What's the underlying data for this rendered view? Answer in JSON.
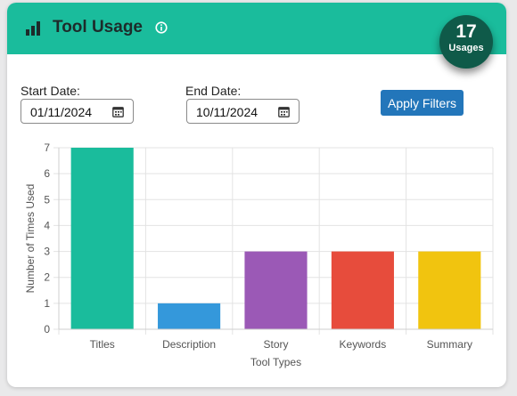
{
  "header": {
    "title": "Tool Usage",
    "title_icon": "bar-chart-icon",
    "info_icon": "info-circle-icon",
    "badge_count": "17",
    "badge_label": "Usages",
    "color": "#1abc9c"
  },
  "filters": {
    "start_label": "Start Date:",
    "start_value": "01/11/2024",
    "end_label": "End Date:",
    "end_value": "10/11/2024",
    "calendar_icon": "calendar-icon",
    "apply_label": "Apply Filters",
    "apply_color": "#2376ba"
  },
  "chart_data": {
    "type": "bar",
    "categories": [
      "Titles",
      "Description",
      "Story",
      "Keywords",
      "Summary"
    ],
    "values": [
      7,
      1,
      3,
      3,
      3
    ],
    "colors": [
      "#1abc9c",
      "#3498db",
      "#9b59b6",
      "#e74c3c",
      "#f1c40f"
    ],
    "xlabel": "Tool Types",
    "ylabel": "Number of Times Used",
    "ylim": [
      0,
      7
    ],
    "yticks": [
      "0",
      "1",
      "2",
      "3",
      "4",
      "5",
      "6",
      "7"
    ],
    "grid": true
  }
}
